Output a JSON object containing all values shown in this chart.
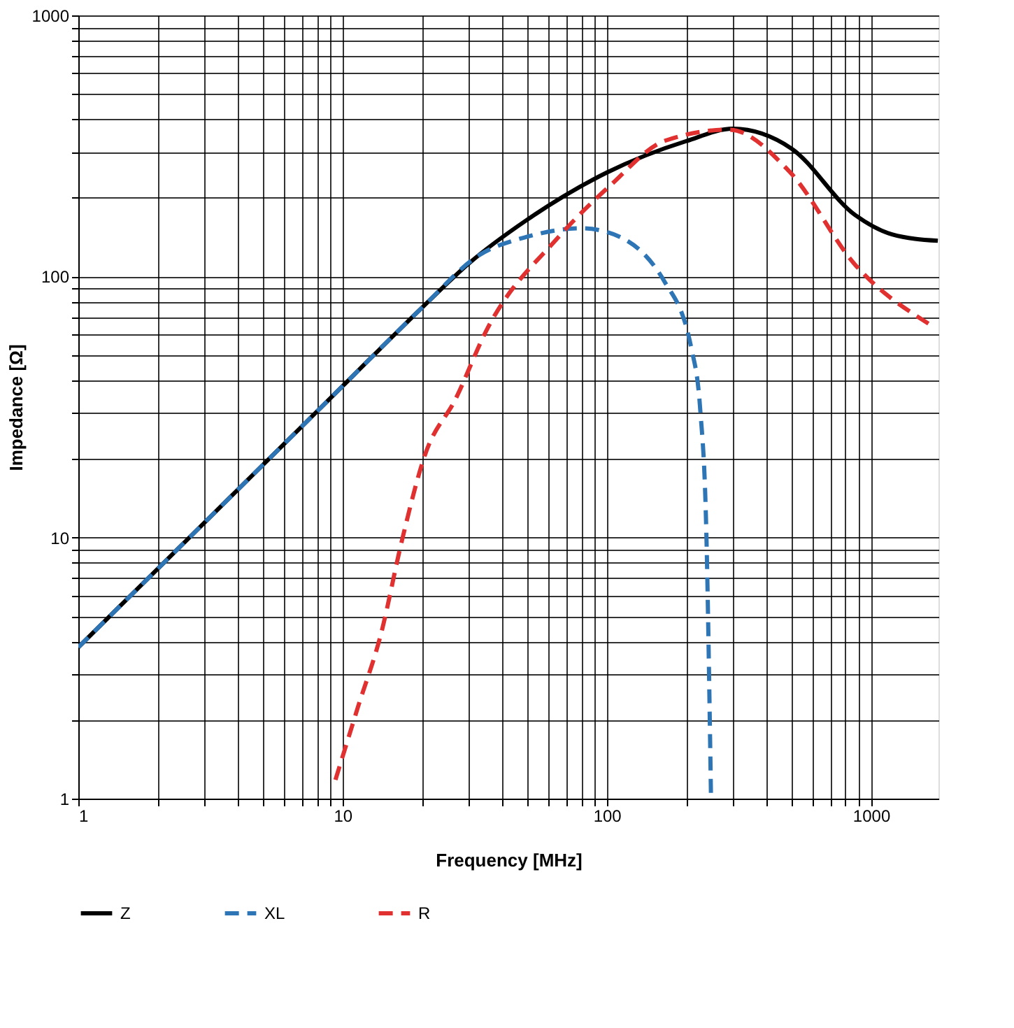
{
  "chart_data": {
    "type": "line",
    "xlabel": "Frequency [MHz]",
    "ylabel": "Impedance [Ω]",
    "log": "xy",
    "grid": true,
    "legend": "bottom",
    "xlim": [
      1,
      1800
    ],
    "ylim": [
      1,
      1000
    ],
    "xticks": [
      1,
      {
        "value": 2,
        "label": null
      },
      {
        "value": 3,
        "label": null
      },
      {
        "value": 4,
        "label": null
      },
      {
        "value": 5,
        "label": null
      },
      {
        "value": 6,
        "label": null
      },
      {
        "value": 7,
        "label": null
      },
      {
        "value": 8,
        "label": null
      },
      {
        "value": 9,
        "label": null
      },
      10,
      {
        "value": 20,
        "label": null
      },
      {
        "value": 30,
        "label": null
      },
      {
        "value": 40,
        "label": null
      },
      {
        "value": 50,
        "label": null
      },
      {
        "value": 60,
        "label": null
      },
      {
        "value": 70,
        "label": null
      },
      {
        "value": 80,
        "label": null
      },
      {
        "value": 90,
        "label": null
      },
      100,
      {
        "value": 200,
        "label": null
      },
      {
        "value": 300,
        "label": null
      },
      {
        "value": 400,
        "label": null
      },
      {
        "value": 500,
        "label": null
      },
      {
        "value": 600,
        "label": null
      },
      {
        "value": 700,
        "label": null
      },
      {
        "value": 800,
        "label": null
      },
      {
        "value": 900,
        "label": null
      },
      1000
    ],
    "yticks": [
      1,
      {
        "value": 2,
        "label": null
      },
      {
        "value": 3,
        "label": null
      },
      {
        "value": 4,
        "label": null
      },
      {
        "value": 5,
        "label": null
      },
      {
        "value": 6,
        "label": null
      },
      {
        "value": 7,
        "label": null
      },
      {
        "value": 8,
        "label": null
      },
      {
        "value": 9,
        "label": null
      },
      10,
      {
        "value": 20,
        "label": null
      },
      {
        "value": 30,
        "label": null
      },
      {
        "value": 40,
        "label": null
      },
      {
        "value": 50,
        "label": null
      },
      {
        "value": 60,
        "label": null
      },
      {
        "value": 70,
        "label": null
      },
      {
        "value": 80,
        "label": null
      },
      {
        "value": 90,
        "label": null
      },
      100,
      {
        "value": 200,
        "label": null
      },
      {
        "value": 300,
        "label": null
      },
      {
        "value": 400,
        "label": null
      },
      {
        "value": 500,
        "label": null
      },
      {
        "value": 600,
        "label": null
      },
      {
        "value": 700,
        "label": null
      },
      {
        "value": 800,
        "label": null
      },
      {
        "value": 900,
        "label": null
      },
      1000
    ],
    "series": [
      {
        "name": "Z",
        "color": "#000000",
        "line_style": "solid",
        "x": [
          1,
          5,
          10,
          20,
          30,
          50,
          100,
          200,
          300,
          500,
          870,
          1200,
          1790
        ],
        "values": [
          3.8,
          19,
          38,
          76,
          112,
          165,
          250,
          330,
          368,
          309,
          172,
          145,
          137
        ]
      },
      {
        "name": "XL",
        "color": "#2e75b6",
        "line_style": "dashed",
        "x": [
          1,
          5,
          10,
          20,
          32.6,
          50,
          80,
          100,
          166,
          209,
          226,
          238,
          248
        ],
        "values": [
          3.8,
          19,
          38,
          76,
          120,
          142,
          153,
          148,
          95,
          53,
          30.5,
          10.6,
          1
        ]
      },
      {
        "name": "R",
        "color": "#e03030",
        "line_style": "dashed",
        "x": [
          9.4,
          11.4,
          14,
          16.8,
          20.5,
          26.8,
          35,
          65,
          104,
          166,
          290,
          490,
          870,
          1690
        ],
        "values": [
          1.18,
          2.22,
          4.3,
          9.8,
          20.7,
          34,
          62,
          140,
          225,
          331,
          365,
          253,
          111,
          65
        ]
      }
    ]
  }
}
